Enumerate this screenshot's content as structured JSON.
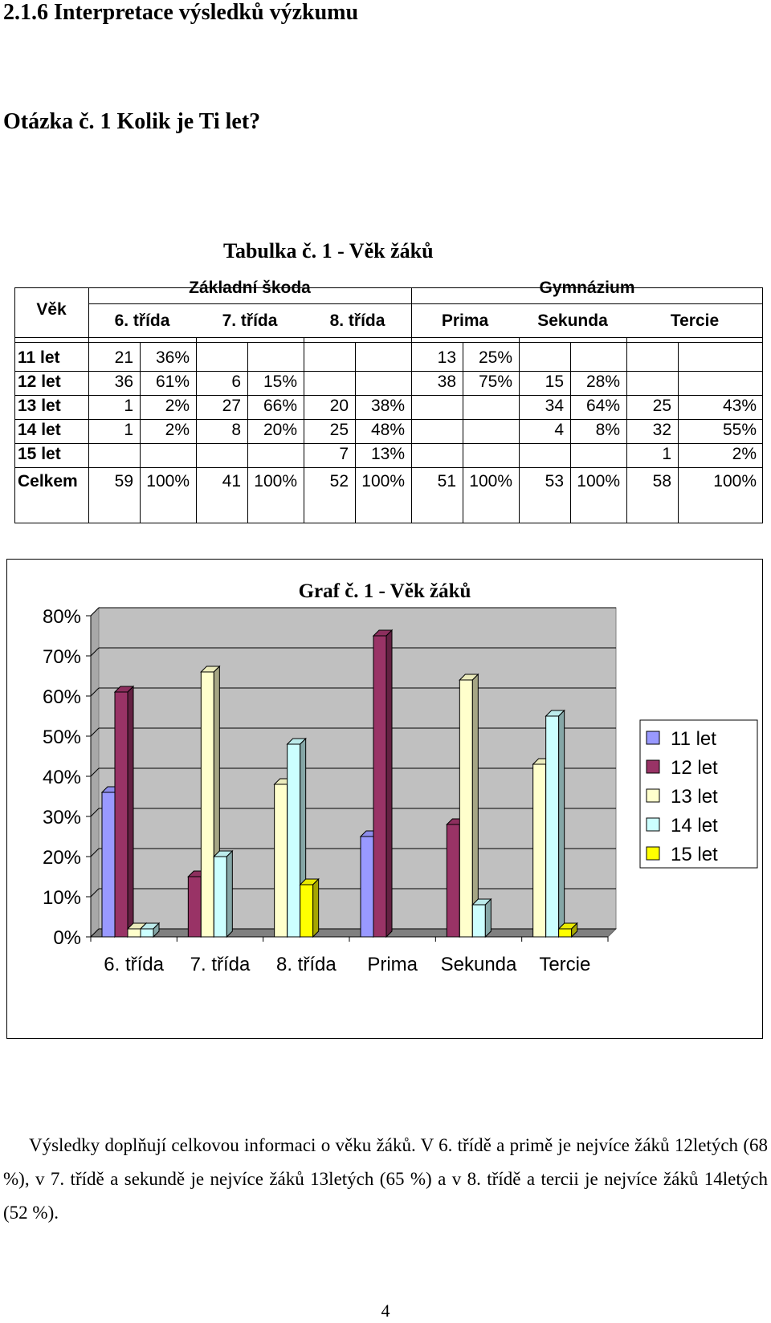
{
  "section_heading": "2.1.6   Interpretace výsledků výzkumu",
  "question_heading": "Otázka č. 1   Kolik je Ti let?",
  "table": {
    "caption": "Tabulka č. 1  - Věk žáků",
    "row_header": "Věk",
    "group_zakladni": "Základní škoda",
    "group_gymnazium": "Gymnázium",
    "classes": [
      "6. třída",
      "7. třída",
      "8. třída",
      "Prima",
      "Sekunda",
      "Tercie"
    ],
    "rows": [
      {
        "label": "11 let",
        "cells": [
          [
            "21",
            "36%"
          ],
          [
            "",
            ""
          ],
          [
            "",
            ""
          ],
          [
            "13",
            "25%"
          ],
          [
            "",
            ""
          ],
          [
            "",
            ""
          ]
        ]
      },
      {
        "label": "12 let",
        "cells": [
          [
            "36",
            "61%"
          ],
          [
            "6",
            "15%"
          ],
          [
            "",
            ""
          ],
          [
            "38",
            "75%"
          ],
          [
            "15",
            "28%"
          ],
          [
            "",
            ""
          ]
        ]
      },
      {
        "label": "13 let",
        "cells": [
          [
            "1",
            "2%"
          ],
          [
            "27",
            "66%"
          ],
          [
            "20",
            "38%"
          ],
          [
            "",
            ""
          ],
          [
            "34",
            "64%"
          ],
          [
            "25",
            "43%"
          ]
        ]
      },
      {
        "label": "14 let",
        "cells": [
          [
            "1",
            "2%"
          ],
          [
            "8",
            "20%"
          ],
          [
            "25",
            "48%"
          ],
          [
            "",
            ""
          ],
          [
            "4",
            "8%"
          ],
          [
            "32",
            "55%"
          ]
        ]
      },
      {
        "label": "15 let",
        "cells": [
          [
            "",
            ""
          ],
          [
            "",
            ""
          ],
          [
            "7",
            "13%"
          ],
          [
            "",
            ""
          ],
          [
            "",
            ""
          ],
          [
            "1",
            "2%"
          ]
        ]
      },
      {
        "label": "Celkem",
        "cells": [
          [
            "59",
            "100%"
          ],
          [
            "41",
            "100%"
          ],
          [
            "52",
            "100%"
          ],
          [
            "51",
            "100%"
          ],
          [
            "53",
            "100%"
          ],
          [
            "58",
            "100%"
          ]
        ]
      }
    ]
  },
  "chart_data": {
    "type": "bar",
    "title": "Graf č. 1 - Věk žáků",
    "categories": [
      "6. třída",
      "7. třída",
      "8. třída",
      "Prima",
      "Sekunda",
      "Tercie"
    ],
    "series": [
      {
        "name": "11 let",
        "values": [
          36,
          0,
          0,
          25,
          0,
          0
        ],
        "color": "#9999FF"
      },
      {
        "name": "12 let",
        "values": [
          61,
          15,
          0,
          75,
          28,
          0
        ],
        "color": "#993366"
      },
      {
        "name": "13 let",
        "values": [
          2,
          66,
          38,
          0,
          64,
          43
        ],
        "color": "#FFFFCC"
      },
      {
        "name": "14 let",
        "values": [
          2,
          20,
          48,
          0,
          8,
          55
        ],
        "color": "#CCFFFF"
      },
      {
        "name": "15 let",
        "values": [
          0,
          0,
          13,
          0,
          0,
          2
        ],
        "color": "#FFFF00"
      }
    ],
    "y_ticks": [
      "0%",
      "10%",
      "20%",
      "30%",
      "40%",
      "50%",
      "60%",
      "70%",
      "80%"
    ],
    "ylim": [
      0,
      80
    ],
    "legend_position": "right",
    "grid": true,
    "style": "3d-clustered-column",
    "wall_color": "#C0C0C0"
  },
  "result_text": "Výsledky doplňují celkovou informaci    o věku žáků. V 6. třídě a primě je nejvíce žáků 12letých (68 %), v  7. třídě a sekundě je nejvíce žáků 13letých (65 %) a v 8. třídě a tercii je nejvíce žáků 14letých (52 %).",
  "page_number": "4"
}
